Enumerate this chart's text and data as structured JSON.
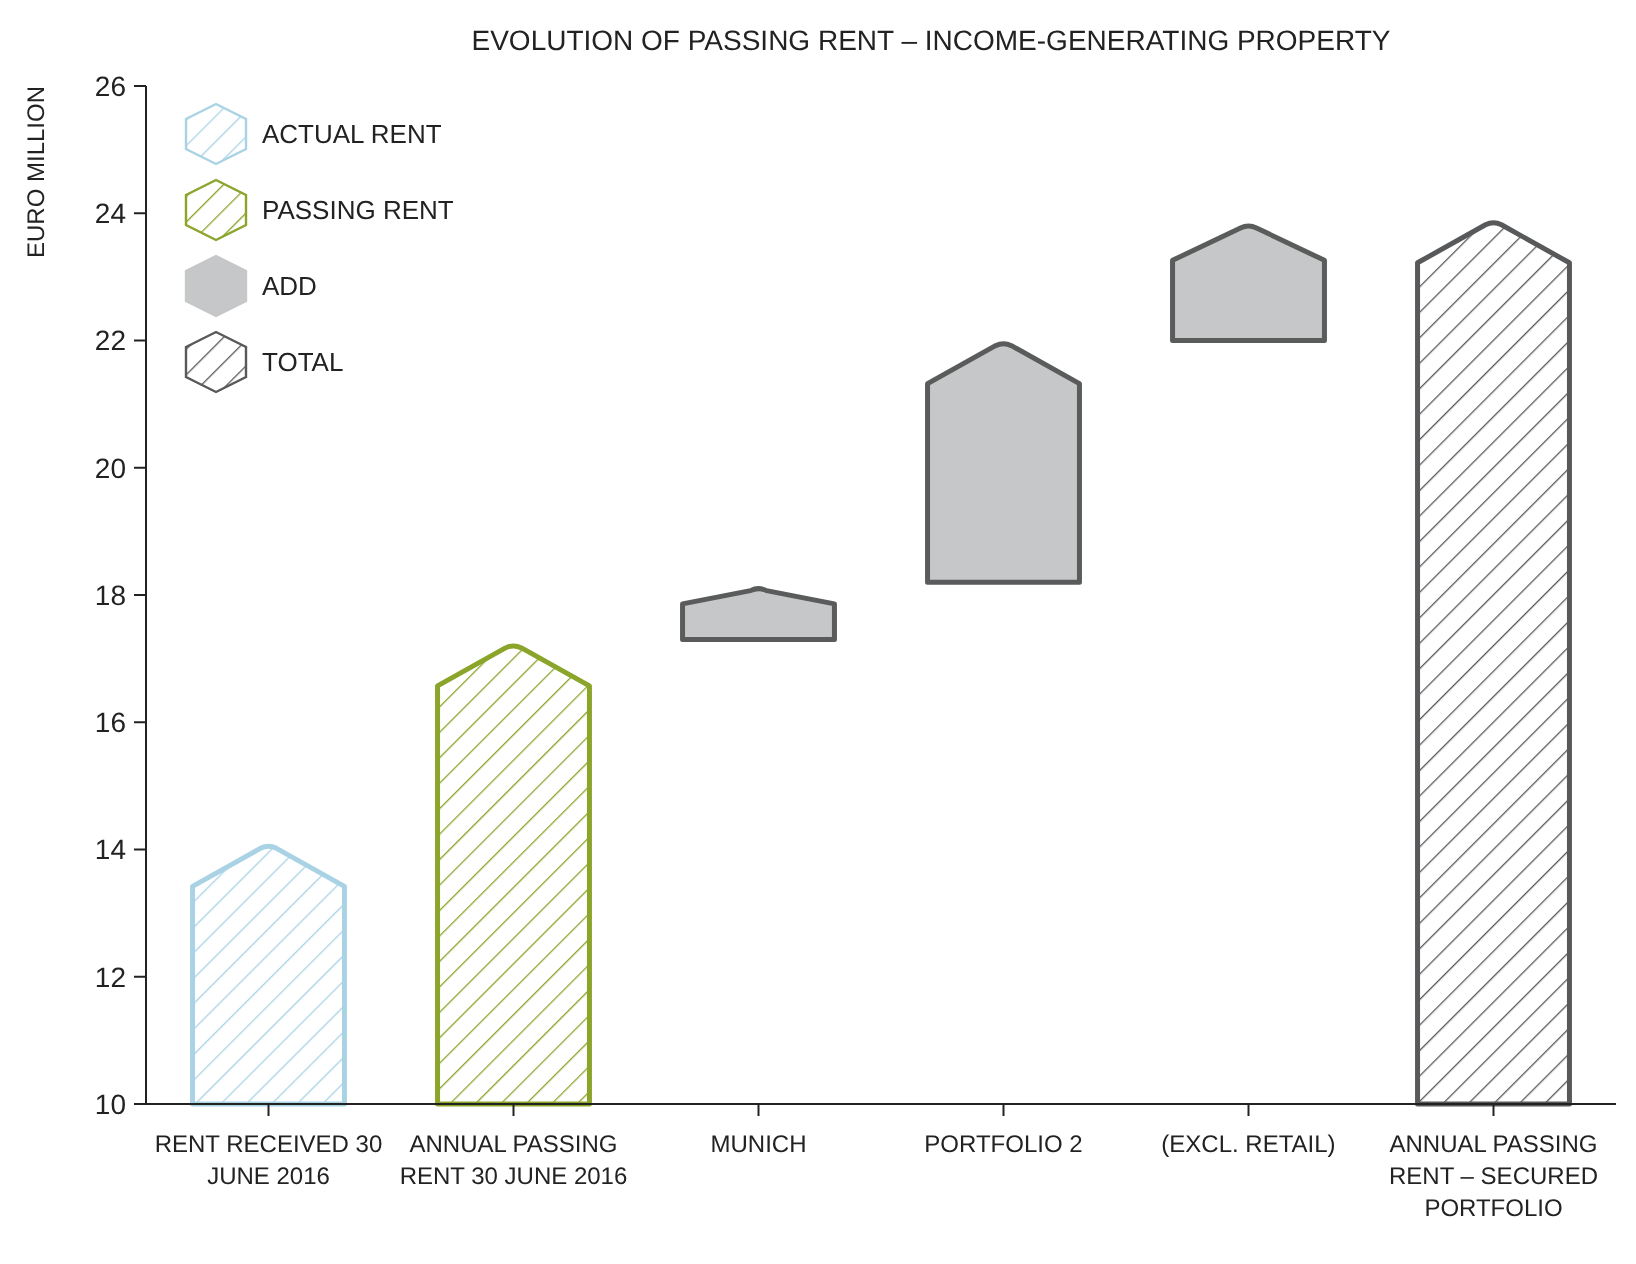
{
  "chart_data": {
    "type": "bar",
    "title": "EVOLUTION OF PASSING RENT – INCOME-GENERATING PROPERTY",
    "ylabel": "EURO MILLION",
    "categories": [
      "RENT RECEIVED 30 JUNE 2016",
      "ANNUAL PASSING RENT 30 JUNE 2016",
      "MUNICH",
      "PORTFOLIO 2",
      "(EXCL. RETAIL)",
      "ANNUAL PASSING RENT – SECURED PORTFOLIO"
    ],
    "series": [
      {
        "name": "ACTUAL RENT",
        "color": "#a9d3e5",
        "values": [
          4.05,
          null,
          null,
          null,
          null,
          null
        ],
        "base": [
          10,
          null,
          null,
          null,
          null,
          null
        ]
      },
      {
        "name": "PASSING RENT",
        "color": "#8ba42a",
        "values": [
          null,
          7.2,
          null,
          null,
          null,
          null
        ],
        "base": [
          null,
          10,
          null,
          null,
          null,
          null
        ]
      },
      {
        "name": "ADD",
        "color": "#c6c7c8",
        "values": [
          null,
          null,
          0.8,
          3.75,
          1.8,
          null
        ],
        "base": [
          null,
          null,
          17.3,
          18.2,
          22.0,
          null
        ]
      },
      {
        "name": "TOTAL",
        "color": "#58595b",
        "values": [
          null,
          null,
          null,
          null,
          null,
          13.85
        ],
        "base": [
          null,
          null,
          null,
          null,
          null,
          10
        ]
      }
    ],
    "ylim": [
      10,
      26
    ],
    "yticks": [
      10,
      12,
      14,
      16,
      18,
      20,
      22,
      24,
      26
    ],
    "legend": "top left",
    "grid": false
  }
}
